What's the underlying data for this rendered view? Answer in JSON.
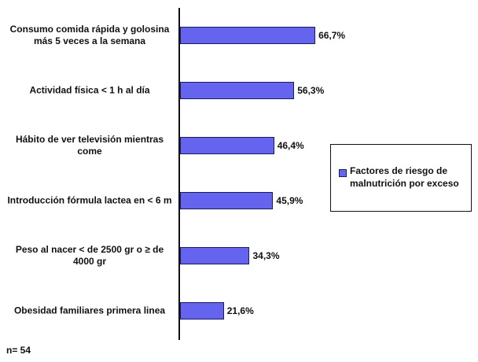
{
  "chart_data": {
    "type": "bar",
    "orientation": "horizontal",
    "categories": [
      "Consumo comida rápida y golosina más 5 veces a la semana",
      "Actividad física < 1 h al día",
      "Hábito de ver televisión mientras come",
      "Introducción fórmula lactea en < 6 m",
      "Peso al nacer < de 2500 gr o ≥ de 4000 gr",
      "Obesidad familiares primera linea"
    ],
    "series": [
      {
        "name": "Factores de riesgo de malnutrición por exceso",
        "color": "#6464ee",
        "values": [
          66.7,
          56.3,
          46.4,
          45.9,
          34.3,
          21.6
        ],
        "value_labels": [
          "66,7%",
          "56,3%",
          "46,4%",
          "45,9%",
          "34,3%",
          "21,6%"
        ]
      }
    ],
    "note": "n= 54",
    "legend": "right"
  }
}
